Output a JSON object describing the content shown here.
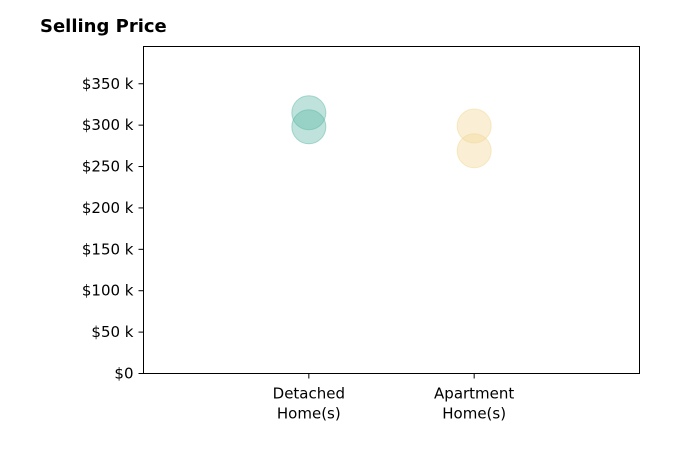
{
  "chart_data": {
    "type": "scatter",
    "title": "Selling Price",
    "xlabel": "",
    "ylabel": "",
    "categories": [
      [
        "Detached",
        "Home(s)"
      ],
      [
        "Apartment",
        "Home(s)"
      ]
    ],
    "y_ticks": [
      {
        "value": 0,
        "label": "$0"
      },
      {
        "value": 50000,
        "label": "$50 k"
      },
      {
        "value": 100000,
        "label": "$100 k"
      },
      {
        "value": 150000,
        "label": "$150 k"
      },
      {
        "value": 200000,
        "label": "$200 k"
      },
      {
        "value": 250000,
        "label": "$250 k"
      },
      {
        "value": 300000,
        "label": "$300 k"
      },
      {
        "value": 350000,
        "label": "$350 k"
      }
    ],
    "ylim": [
      0,
      395000
    ],
    "xlim": [
      -1,
      2
    ],
    "grid": false,
    "series": [
      {
        "color": "#5fb8a8",
        "points": [
          {
            "category": 0,
            "y": 315000
          },
          {
            "category": 0,
            "y": 298000
          }
        ]
      },
      {
        "color": "#f2d896",
        "points": [
          {
            "category": 1,
            "y": 299000
          },
          {
            "category": 1,
            "y": 269000
          }
        ]
      }
    ]
  }
}
